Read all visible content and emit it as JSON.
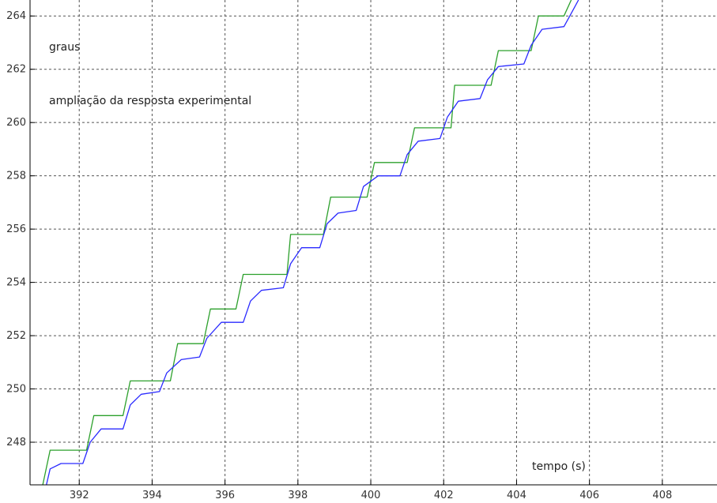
{
  "chart_data": {
    "type": "line",
    "title": "",
    "xlabel": "tempo (s)",
    "ylabel": "graus",
    "annotation": "ampliação da resposta experimental",
    "xlim": [
      390.65,
      409.5
    ],
    "ylim": [
      246.4,
      264.6
    ],
    "xticks": [
      392,
      394,
      396,
      398,
      400,
      402,
      404,
      406,
      408
    ],
    "yticks": [
      248,
      250,
      252,
      254,
      256,
      258,
      260,
      262,
      264
    ],
    "grid": true,
    "colors": {
      "background": "#ffffff",
      "grid": "#555555",
      "axis": "#000000",
      "green": "#2ca02c",
      "blue": "#2a2aff"
    },
    "series": [
      {
        "color": "#2ca02c",
        "points": [
          [
            391.0,
            246.4
          ],
          [
            391.2,
            247.7
          ],
          [
            392.2,
            247.7
          ],
          [
            392.4,
            249.0
          ],
          [
            393.2,
            249.0
          ],
          [
            393.4,
            250.3
          ],
          [
            394.5,
            250.3
          ],
          [
            394.7,
            251.7
          ],
          [
            395.4,
            251.7
          ],
          [
            395.6,
            253.0
          ],
          [
            396.3,
            253.0
          ],
          [
            396.5,
            254.3
          ],
          [
            397.7,
            254.3
          ],
          [
            397.8,
            255.8
          ],
          [
            398.7,
            255.8
          ],
          [
            398.9,
            257.2
          ],
          [
            399.9,
            257.2
          ],
          [
            400.1,
            258.5
          ],
          [
            401.0,
            258.5
          ],
          [
            401.2,
            259.8
          ],
          [
            402.2,
            259.8
          ],
          [
            402.3,
            261.4
          ],
          [
            403.3,
            261.4
          ],
          [
            403.5,
            262.7
          ],
          [
            404.4,
            262.7
          ],
          [
            404.6,
            264.0
          ],
          [
            405.3,
            264.0
          ],
          [
            405.5,
            264.6
          ]
        ]
      },
      {
        "color": "#2a2aff",
        "points": [
          [
            391.1,
            246.4
          ],
          [
            391.2,
            247.0
          ],
          [
            391.5,
            247.2
          ],
          [
            392.1,
            247.2
          ],
          [
            392.3,
            248.0
          ],
          [
            392.6,
            248.5
          ],
          [
            393.2,
            248.5
          ],
          [
            393.4,
            249.4
          ],
          [
            393.7,
            249.8
          ],
          [
            394.2,
            249.9
          ],
          [
            394.4,
            250.6
          ],
          [
            394.8,
            251.1
          ],
          [
            395.3,
            251.2
          ],
          [
            395.5,
            251.9
          ],
          [
            395.9,
            252.5
          ],
          [
            396.5,
            252.5
          ],
          [
            396.7,
            253.3
          ],
          [
            397.0,
            253.7
          ],
          [
            397.6,
            253.8
          ],
          [
            397.8,
            254.7
          ],
          [
            398.1,
            255.3
          ],
          [
            398.6,
            255.3
          ],
          [
            398.8,
            256.2
          ],
          [
            399.1,
            256.6
          ],
          [
            399.6,
            256.7
          ],
          [
            399.8,
            257.6
          ],
          [
            400.2,
            258.0
          ],
          [
            400.8,
            258.0
          ],
          [
            401.0,
            258.8
          ],
          [
            401.3,
            259.3
          ],
          [
            401.9,
            259.4
          ],
          [
            402.1,
            260.2
          ],
          [
            402.4,
            260.8
          ],
          [
            403.0,
            260.9
          ],
          [
            403.2,
            261.6
          ],
          [
            403.5,
            262.1
          ],
          [
            404.2,
            262.2
          ],
          [
            404.4,
            262.9
          ],
          [
            404.7,
            263.5
          ],
          [
            405.3,
            263.6
          ],
          [
            405.5,
            264.1
          ],
          [
            405.7,
            264.6
          ]
        ]
      }
    ]
  }
}
